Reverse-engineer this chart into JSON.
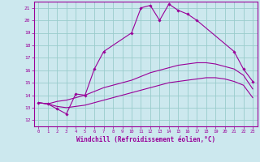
{
  "xlabel": "Windchill (Refroidissement éolien,°C)",
  "background_color": "#cce8ee",
  "line_color": "#990099",
  "grid_color": "#99cccc",
  "xlim": [
    -0.5,
    23.5
  ],
  "ylim": [
    11.5,
    21.5
  ],
  "yticks": [
    12,
    13,
    14,
    15,
    16,
    17,
    18,
    19,
    20,
    21
  ],
  "xticks": [
    0,
    1,
    2,
    3,
    4,
    5,
    6,
    7,
    8,
    9,
    10,
    11,
    12,
    13,
    14,
    15,
    16,
    17,
    18,
    19,
    20,
    21,
    22,
    23
  ],
  "series": [
    {
      "x": [
        0,
        1,
        2,
        3,
        4,
        5,
        6,
        7,
        10,
        11,
        12,
        13,
        14,
        15,
        16,
        17,
        21,
        22,
        23
      ],
      "y": [
        13.4,
        13.3,
        12.9,
        12.5,
        14.1,
        14.0,
        16.1,
        17.5,
        19.0,
        21.0,
        21.2,
        20.0,
        21.3,
        20.8,
        20.5,
        20.0,
        17.5,
        16.1,
        15.1
      ],
      "with_markers": true
    },
    {
      "x": [
        0,
        1,
        2,
        3,
        4,
        5,
        6,
        7,
        8,
        9,
        10,
        11,
        12,
        13,
        14,
        15,
        16,
        17,
        18,
        19,
        20,
        21,
        22,
        23
      ],
      "y": [
        13.4,
        13.3,
        13.5,
        13.6,
        13.8,
        14.0,
        14.3,
        14.6,
        14.8,
        15.0,
        15.2,
        15.5,
        15.8,
        16.0,
        16.2,
        16.4,
        16.5,
        16.6,
        16.6,
        16.5,
        16.3,
        16.1,
        15.6,
        14.5
      ],
      "with_markers": false
    },
    {
      "x": [
        0,
        1,
        2,
        3,
        4,
        5,
        6,
        7,
        8,
        9,
        10,
        11,
        12,
        13,
        14,
        15,
        16,
        17,
        18,
        19,
        20,
        21,
        22,
        23
      ],
      "y": [
        13.4,
        13.3,
        13.1,
        13.0,
        13.1,
        13.2,
        13.4,
        13.6,
        13.8,
        14.0,
        14.2,
        14.4,
        14.6,
        14.8,
        15.0,
        15.1,
        15.2,
        15.3,
        15.4,
        15.4,
        15.3,
        15.1,
        14.8,
        13.8
      ],
      "with_markers": false
    }
  ]
}
